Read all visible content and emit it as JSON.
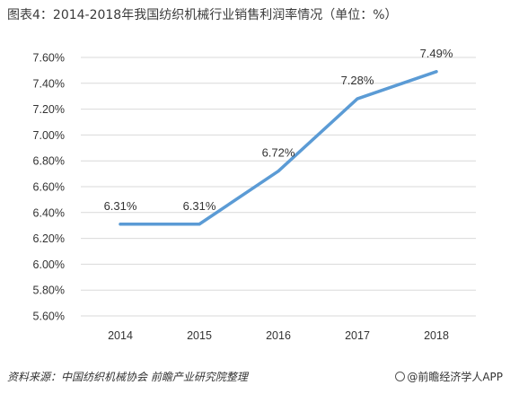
{
  "title": "图表4：2014-2018年我国纺织机械行业销售利润率情况（单位：%）",
  "source": "资料来源：中国纺织机械协会 前瞻产业研究院整理",
  "brand": "@前瞻经济学人APP",
  "colors": {
    "line": "#5b9bd5",
    "grid": "#d9d9d9",
    "axis_text": "#333333"
  },
  "chart_data": {
    "type": "line",
    "title": "",
    "xlabel": "",
    "ylabel": "",
    "categories": [
      "2014",
      "2015",
      "2016",
      "2017",
      "2018"
    ],
    "series": [
      {
        "values": [
          6.31,
          6.31,
          6.72,
          7.28,
          7.49
        ],
        "labels": [
          "6.31%",
          "6.31%",
          "6.72%",
          "7.28%",
          "7.49%"
        ]
      }
    ],
    "ylim": [
      5.6,
      7.6
    ],
    "yticks": [
      5.6,
      5.8,
      6.0,
      6.2,
      6.4,
      6.6,
      6.8,
      7.0,
      7.2,
      7.4,
      7.6
    ],
    "ytick_labels": [
      "5.60%",
      "5.80%",
      "6.00%",
      "6.20%",
      "6.40%",
      "6.60%",
      "6.80%",
      "7.00%",
      "7.20%",
      "7.40%",
      "7.60%"
    ],
    "grid": true,
    "legend": "none"
  }
}
